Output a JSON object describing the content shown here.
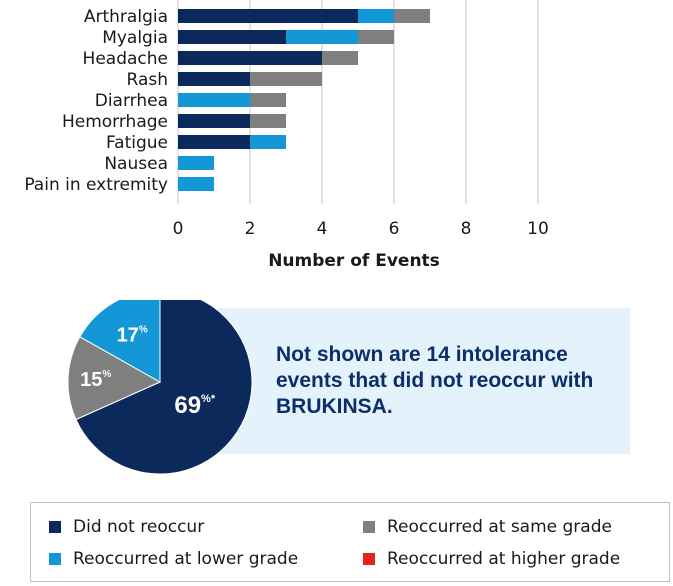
{
  "chart_data": [
    {
      "type": "bar",
      "orientation": "horizontal",
      "stacked": true,
      "categories": [
        "Arthralgia",
        "Myalgia",
        "Headache",
        "Rash",
        "Diarrhea",
        "Hemorrhage",
        "Fatigue",
        "Nausea",
        "Pain in extremity"
      ],
      "series": [
        {
          "name": "Did not reoccur",
          "color": "#0b2a5b",
          "values": [
            5,
            3,
            4,
            2,
            0,
            2,
            2,
            0,
            0
          ]
        },
        {
          "name": "Reoccurred at lower grade",
          "color": "#1497d6",
          "values": [
            1,
            2,
            0,
            0,
            2,
            0,
            1,
            1,
            1
          ]
        },
        {
          "name": "Reoccurred at same grade",
          "color": "#7f7f7f",
          "values": [
            1,
            1,
            1,
            2,
            1,
            1,
            0,
            0,
            0
          ]
        },
        {
          "name": "Reoccurred at higher grade",
          "color": "#e2231a",
          "values": [
            0,
            0,
            0,
            0,
            0,
            0,
            0,
            0,
            0
          ]
        }
      ],
      "xlabel": "Number of Events",
      "xlim": [
        0,
        10
      ],
      "xticks": [
        "0",
        "2",
        "4",
        "6",
        "8",
        "10"
      ],
      "grid": true
    },
    {
      "type": "pie",
      "slices": [
        {
          "name": "Did not reoccur",
          "value": 69,
          "label": "69",
          "suffix": "%*",
          "color": "#0b2a5b"
        },
        {
          "name": "Reoccurred at same grade",
          "value": 15,
          "label": "15",
          "suffix": "%",
          "color": "#7f7f7f"
        },
        {
          "name": "Reoccurred at lower grade",
          "value": 17,
          "label": "17",
          "suffix": "%",
          "color": "#1497d6"
        }
      ]
    }
  ],
  "note": "Not shown are 14 intolerance events that did not reoccur with BRUKINSA.",
  "legend": {
    "placement": "bottom",
    "items": [
      {
        "label": "Did not reoccur",
        "color": "#0b2a5b"
      },
      {
        "label": "Reoccurred at same grade",
        "color": "#7f7f7f"
      },
      {
        "label": "Reoccurred at lower grade",
        "color": "#1497d6"
      },
      {
        "label": "Reoccurred at higher grade",
        "color": "#e2231a"
      }
    ]
  }
}
